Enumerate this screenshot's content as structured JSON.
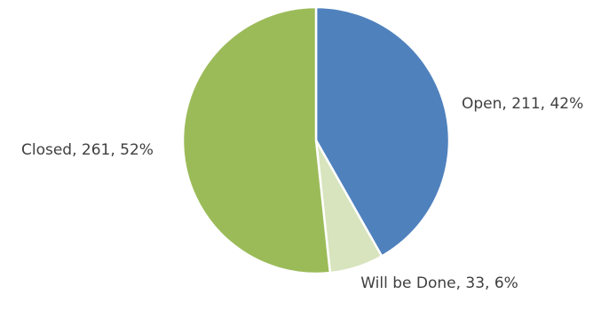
{
  "chart_data": {
    "type": "pie",
    "title": "",
    "slices": [
      {
        "label": "Open",
        "value": 211,
        "percent": "42%",
        "color": "#4F81BD",
        "display": "Open, 211, 42%"
      },
      {
        "label": "Will be Done",
        "value": 33,
        "percent": "6%",
        "color": "#D7E4BD",
        "display": "Will be Done, 33, 6%"
      },
      {
        "label": "Closed",
        "value": 261,
        "percent": "52%",
        "color": "#9BBB59",
        "display": "Closed, 261, 52%"
      }
    ],
    "legend": "none",
    "start_angle": "12 o'clock, clockwise"
  }
}
